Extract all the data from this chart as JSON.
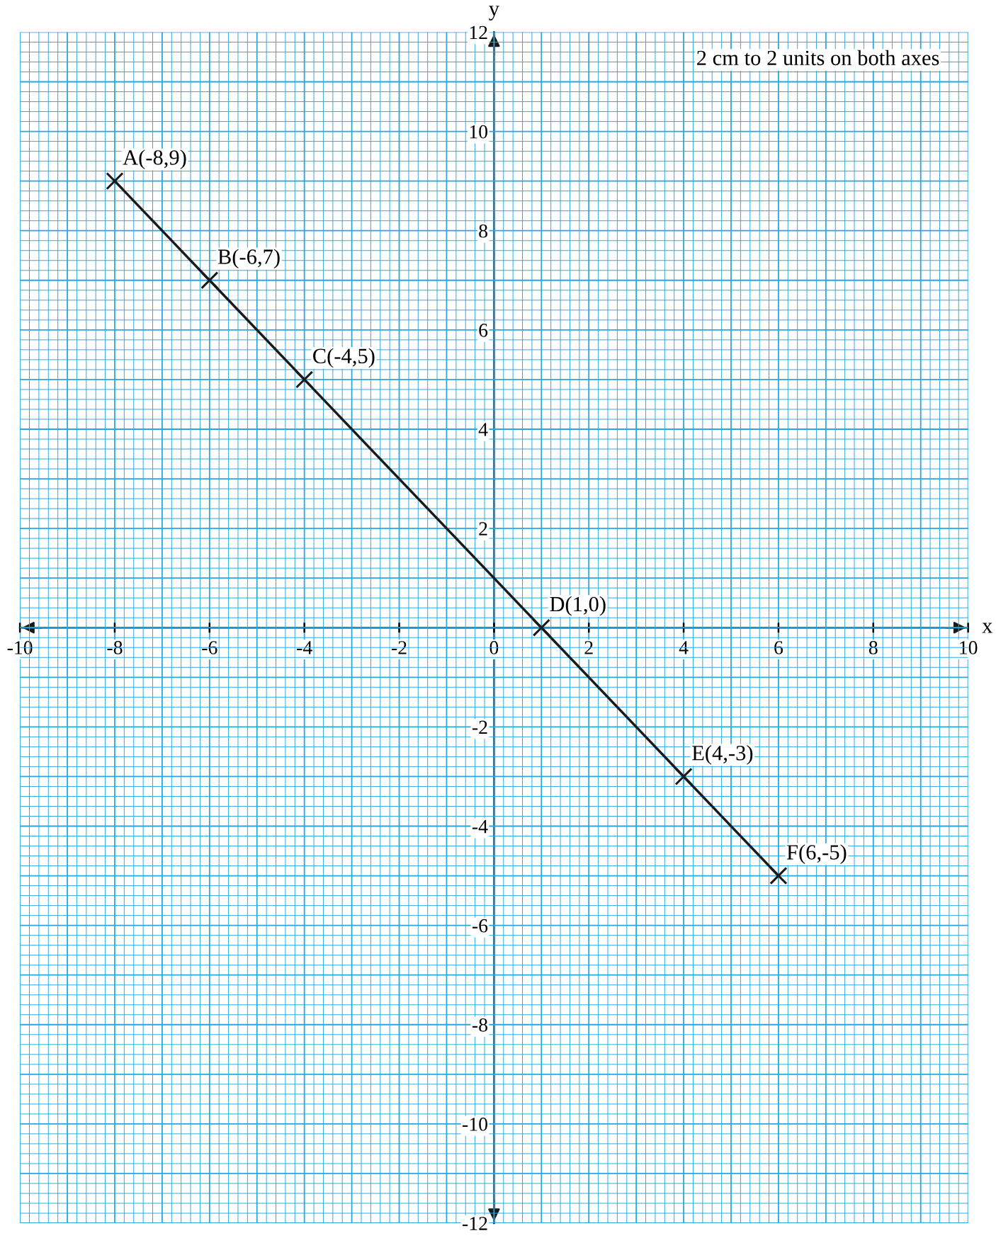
{
  "chart_data": {
    "type": "line",
    "xlabel": "x",
    "ylabel": "y",
    "x": [
      -8,
      -6,
      -4,
      1,
      4,
      6
    ],
    "series": [
      {
        "color": "#1a1a1a",
        "values": [
          9,
          7,
          5,
          0,
          -3,
          -5
        ]
      }
    ],
    "xlim": [
      -10,
      10
    ],
    "ylim": [
      -12,
      12
    ],
    "xticks": [
      -10,
      {
        "value": -9.8,
        "label": null
      },
      {
        "value": -9.6,
        "label": null
      },
      {
        "value": -9.4,
        "label": null
      },
      {
        "value": -9.2,
        "label": null
      },
      {
        "value": -9,
        "label": null
      },
      {
        "value": -8.8,
        "label": null
      },
      {
        "value": -8.6,
        "label": null
      },
      {
        "value": -8.4,
        "label": null
      },
      {
        "value": -8.2,
        "label": null
      },
      -8,
      {
        "value": -7.8,
        "label": null
      },
      {
        "value": -7.6,
        "label": null
      },
      {
        "value": -7.4,
        "label": null
      },
      {
        "value": -7.2,
        "label": null
      },
      {
        "value": -7,
        "label": null
      },
      {
        "value": -6.8,
        "label": null
      },
      {
        "value": -6.6,
        "label": null
      },
      {
        "value": -6.4,
        "label": null
      },
      {
        "value": -6.2,
        "label": null
      },
      -6,
      {
        "value": -5.8,
        "label": null
      },
      {
        "value": -5.6,
        "label": null
      },
      {
        "value": -5.4,
        "label": null
      },
      {
        "value": -5.2,
        "label": null
      },
      {
        "value": -5,
        "label": null
      },
      {
        "value": -4.8,
        "label": null
      },
      {
        "value": -4.6,
        "label": null
      },
      {
        "value": -4.4,
        "label": null
      },
      {
        "value": -4.2,
        "label": null
      },
      -4,
      {
        "value": -3.8,
        "label": null
      },
      {
        "value": -3.6,
        "label": null
      },
      {
        "value": -3.4,
        "label": null
      },
      {
        "value": -3.2,
        "label": null
      },
      {
        "value": -3,
        "label": null
      },
      {
        "value": -2.8,
        "label": null
      },
      {
        "value": -2.6,
        "label": null
      },
      {
        "value": -2.4,
        "label": null
      },
      {
        "value": -2.2,
        "label": null
      },
      -2,
      {
        "value": -1.8,
        "label": null
      },
      {
        "value": -1.6,
        "label": null
      },
      {
        "value": -1.4,
        "label": null
      },
      {
        "value": -1.2,
        "label": null
      },
      {
        "value": -1,
        "label": null
      },
      {
        "value": -0.8,
        "label": null
      },
      {
        "value": -0.6,
        "label": null
      },
      {
        "value": -0.4,
        "label": null
      },
      {
        "value": -0.2,
        "label": null
      },
      0,
      {
        "value": 0.2,
        "label": null
      },
      {
        "value": 0.4,
        "label": null
      },
      {
        "value": 0.6,
        "label": null
      },
      {
        "value": 0.8,
        "label": null
      },
      {
        "value": 1,
        "label": null
      },
      {
        "value": 1.2,
        "label": null
      },
      {
        "value": 1.4,
        "label": null
      },
      {
        "value": 1.6,
        "label": null
      },
      {
        "value": 1.8,
        "label": null
      },
      2,
      {
        "value": 2.2,
        "label": null
      },
      {
        "value": 2.4,
        "label": null
      },
      {
        "value": 2.6,
        "label": null
      },
      {
        "value": 2.8,
        "label": null
      },
      {
        "value": 3,
        "label": null
      },
      {
        "value": 3.2,
        "label": null
      },
      {
        "value": 3.4,
        "label": null
      },
      {
        "value": 3.6,
        "label": null
      },
      {
        "value": 3.8,
        "label": null
      },
      4,
      {
        "value": 4.2,
        "label": null
      },
      {
        "value": 4.4,
        "label": null
      },
      {
        "value": 4.6,
        "label": null
      },
      {
        "value": 4.8,
        "label": null
      },
      {
        "value": 5,
        "label": null
      },
      {
        "value": 5.2,
        "label": null
      },
      {
        "value": 5.4,
        "label": null
      },
      {
        "value": 5.6,
        "label": null
      },
      {
        "value": 5.8,
        "label": null
      },
      6,
      {
        "value": 6.2,
        "label": null
      },
      {
        "value": 6.4,
        "label": null
      },
      {
        "value": 6.6,
        "label": null
      },
      {
        "value": 6.8,
        "label": null
      },
      {
        "value": 7,
        "label": null
      },
      {
        "value": 7.2,
        "label": null
      },
      {
        "value": 7.4,
        "label": null
      },
      {
        "value": 7.6,
        "label": null
      },
      {
        "value": 7.8,
        "label": null
      },
      8,
      {
        "value": 8.2,
        "label": null
      },
      {
        "value": 8.4,
        "label": null
      },
      {
        "value": 8.6,
        "label": null
      },
      {
        "value": 8.8,
        "label": null
      },
      {
        "value": 9,
        "label": null
      },
      {
        "value": 9.2,
        "label": null
      },
      {
        "value": 9.4,
        "label": null
      },
      {
        "value": 9.6,
        "label": null
      },
      {
        "value": 9.8,
        "label": null
      },
      10
    ],
    "yticks": [
      -12,
      {
        "value": -11.8,
        "label": null
      },
      {
        "value": -11.6,
        "label": null
      },
      {
        "value": -11.4,
        "label": null
      },
      {
        "value": -11.2,
        "label": null
      },
      {
        "value": -11,
        "label": null
      },
      {
        "value": -10.8,
        "label": null
      },
      {
        "value": -10.6,
        "label": null
      },
      {
        "value": -10.4,
        "label": null
      },
      {
        "value": -10.2,
        "label": null
      },
      -10,
      {
        "value": -9.8,
        "label": null
      },
      {
        "value": -9.6,
        "label": null
      },
      {
        "value": -9.4,
        "label": null
      },
      {
        "value": -9.2,
        "label": null
      },
      {
        "value": -9,
        "label": null
      },
      {
        "value": -8.8,
        "label": null
      },
      {
        "value": -8.6,
        "label": null
      },
      {
        "value": -8.4,
        "label": null
      },
      {
        "value": -8.2,
        "label": null
      },
      -8,
      {
        "value": -7.8,
        "label": null
      },
      {
        "value": -7.6,
        "label": null
      },
      {
        "value": -7.4,
        "label": null
      },
      {
        "value": -7.2,
        "label": null
      },
      {
        "value": -7,
        "label": null
      },
      {
        "value": -6.8,
        "label": null
      },
      {
        "value": -6.6,
        "label": null
      },
      {
        "value": -6.4,
        "label": null
      },
      {
        "value": -6.2,
        "label": null
      },
      -6,
      {
        "value": -5.8,
        "label": null
      },
      {
        "value": -5.6,
        "label": null
      },
      {
        "value": -5.4,
        "label": null
      },
      {
        "value": -5.2,
        "label": null
      },
      {
        "value": -5,
        "label": null
      },
      {
        "value": -4.8,
        "label": null
      },
      {
        "value": -4.6,
        "label": null
      },
      {
        "value": -4.4,
        "label": null
      },
      {
        "value": -4.2,
        "label": null
      },
      -4,
      {
        "value": -3.8,
        "label": null
      },
      {
        "value": -3.6,
        "label": null
      },
      {
        "value": -3.4,
        "label": null
      },
      {
        "value": -3.2,
        "label": null
      },
      {
        "value": -3,
        "label": null
      },
      {
        "value": -2.8,
        "label": null
      },
      {
        "value": -2.6,
        "label": null
      },
      {
        "value": -2.4,
        "label": null
      },
      {
        "value": -2.2,
        "label": null
      },
      -2,
      {
        "value": -1.8,
        "label": null
      },
      {
        "value": -1.6,
        "label": null
      },
      {
        "value": -1.4,
        "label": null
      },
      {
        "value": -1.2,
        "label": null
      },
      {
        "value": -1,
        "label": null
      },
      {
        "value": -0.8,
        "label": null
      },
      {
        "value": -0.6,
        "label": null
      },
      {
        "value": -0.4,
        "label": null
      },
      {
        "value": -0.2,
        "label": null
      },
      {
        "value": 0,
        "label": null
      },
      {
        "value": 0.2,
        "label": null
      },
      {
        "value": 0.4,
        "label": null
      },
      {
        "value": 0.6,
        "label": null
      },
      {
        "value": 0.8,
        "label": null
      },
      {
        "value": 1,
        "label": null
      },
      {
        "value": 1.2,
        "label": null
      },
      {
        "value": 1.4,
        "label": null
      },
      {
        "value": 1.6,
        "label": null
      },
      {
        "value": 1.8,
        "label": null
      },
      2,
      {
        "value": 2.2,
        "label": null
      },
      {
        "value": 2.4,
        "label": null
      },
      {
        "value": 2.6,
        "label": null
      },
      {
        "value": 2.8,
        "label": null
      },
      {
        "value": 3,
        "label": null
      },
      {
        "value": 3.2,
        "label": null
      },
      {
        "value": 3.4,
        "label": null
      },
      {
        "value": 3.6,
        "label": null
      },
      {
        "value": 3.8,
        "label": null
      },
      4,
      {
        "value": 4.2,
        "label": null
      },
      {
        "value": 4.4,
        "label": null
      },
      {
        "value": 4.6,
        "label": null
      },
      {
        "value": 4.8,
        "label": null
      },
      {
        "value": 5,
        "label": null
      },
      {
        "value": 5.2,
        "label": null
      },
      {
        "value": 5.4,
        "label": null
      },
      {
        "value": 5.6,
        "label": null
      },
      {
        "value": 5.8,
        "label": null
      },
      6,
      {
        "value": 6.2,
        "label": null
      },
      {
        "value": 6.4,
        "label": null
      },
      {
        "value": 6.6,
        "label": null
      },
      {
        "value": 6.8,
        "label": null
      },
      {
        "value": 7,
        "label": null
      },
      {
        "value": 7.2,
        "label": null
      },
      {
        "value": 7.4,
        "label": null
      },
      {
        "value": 7.6,
        "label": null
      },
      {
        "value": 7.8,
        "label": null
      },
      8,
      {
        "value": 8.2,
        "label": null
      },
      {
        "value": 8.4,
        "label": null
      },
      {
        "value": 8.6,
        "label": null
      },
      {
        "value": 8.8,
        "label": null
      },
      {
        "value": 9,
        "label": null
      },
      {
        "value": 9.2,
        "label": null
      },
      {
        "value": 9.4,
        "label": null
      },
      {
        "value": 9.6,
        "label": null
      },
      {
        "value": 9.8,
        "label": null
      },
      10,
      {
        "value": 10.2,
        "label": null
      },
      {
        "value": 10.4,
        "label": null
      },
      {
        "value": 10.6,
        "label": null
      },
      {
        "value": 10.8,
        "label": null
      },
      {
        "value": 11,
        "label": null
      },
      {
        "value": 11.2,
        "label": null
      },
      {
        "value": 11.4,
        "label": null
      },
      {
        "value": 11.6,
        "label": null
      },
      {
        "value": 11.8,
        "label": null
      },
      12
    ],
    "grid": true,
    "marker": "cross",
    "line_style": "solid",
    "annotations": [
      {
        "text": "A(-8,9)",
        "x": -8,
        "y": 9
      },
      {
        "text": "B(-6,7)",
        "x": -6,
        "y": 7
      },
      {
        "text": "C(-4,5)",
        "x": -4,
        "y": 5
      },
      {
        "text": "D(1,0)",
        "x": 1,
        "y": 0
      },
      {
        "text": "E(4,-3)",
        "x": 4,
        "y": -3
      },
      {
        "text": "F(6,-5)",
        "x": 6,
        "y": -5
      },
      "2 cm to 2 units on both axes"
    ]
  }
}
